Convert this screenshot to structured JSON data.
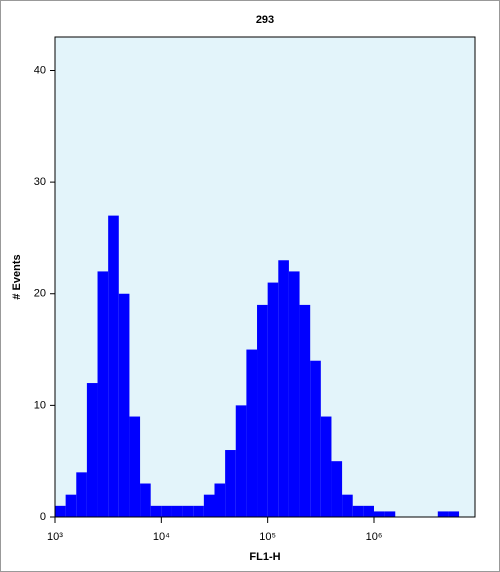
{
  "chart_data": {
    "type": "histogram",
    "title": "293",
    "xlabel": "FL1-H",
    "ylabel": "# Events",
    "xscale": "log",
    "color": "#0000ff",
    "background": "#e3f4fa",
    "bins": [
      1000,
      1259,
      1585,
      1995,
      2512,
      3162,
      3981,
      5012,
      6310,
      7943,
      10000,
      12589,
      15849,
      19953,
      25119,
      31623,
      39811,
      50119,
      63096,
      79433,
      100000,
      125893,
      158489,
      199526,
      251189,
      316228,
      398107,
      501187,
      630957,
      794328,
      1000000,
      1258925,
      1584893,
      1995262,
      2511886,
      3162278,
      3981072,
      5011872,
      6309573,
      7943282
    ],
    "values": [
      1,
      2,
      4,
      12,
      22,
      27,
      20,
      9,
      3,
      1,
      1,
      1,
      1,
      1,
      2,
      3,
      6,
      10,
      15,
      19,
      21,
      23,
      22,
      19,
      14,
      9,
      5,
      2,
      1,
      1,
      0.5,
      0.5,
      0,
      0,
      0,
      0,
      0.5,
      0.5,
      0
    ],
    "xlim": [
      1000,
      8912509
    ],
    "ylim": [
      0,
      43
    ],
    "xticks": [
      {
        "value": 1000,
        "label": "10³"
      },
      {
        "value": 10000,
        "label": "10⁴"
      },
      {
        "value": 100000,
        "label": "10⁵"
      },
      {
        "value": 1000000,
        "label": "10⁶"
      }
    ],
    "yticks": [
      0,
      10,
      20,
      30,
      40
    ]
  }
}
